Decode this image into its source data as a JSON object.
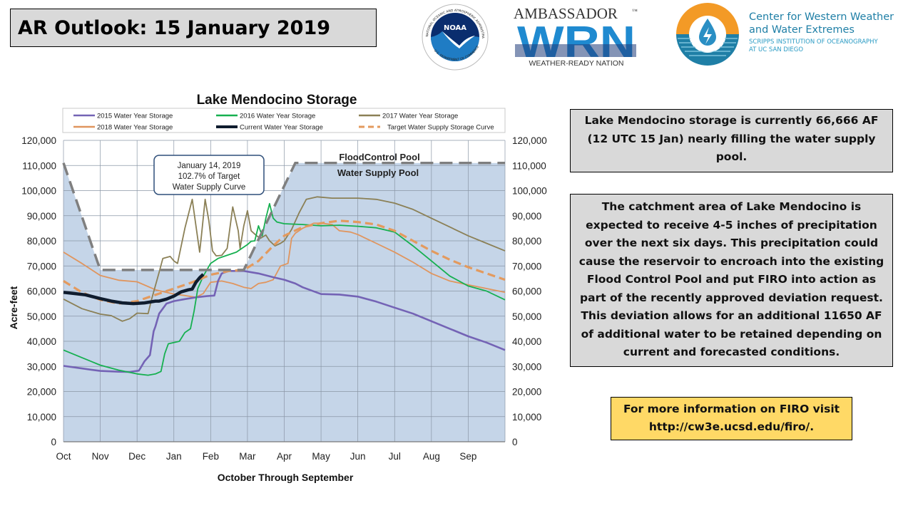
{
  "header": {
    "title": "AR Outlook: 15 January 2019"
  },
  "logos": {
    "noaa": {
      "label": "NOAA",
      "ring_text": "NATIONAL OCEANIC AND ATMOSPHERIC ADMINISTRATION",
      "ring_text_bottom": "U.S. DEPARTMENT OF COMMERCE"
    },
    "wrn": {
      "top": "AMBASSADOR",
      "tm": "™",
      "mark": "WRN",
      "bottom": "WEATHER-READY NATION"
    },
    "cw3e": {
      "line1": "Center for Western Weather",
      "line2": "and Water Extremes",
      "line3": "SCRIPPS INSTITUTION OF OCEANOGRAPHY",
      "line4": "AT UC SAN DIEGO"
    }
  },
  "info_boxes": {
    "storage": "Lake Mendocino storage is currently 66,666 AF (12 UTC 15 Jan) nearly filling the water supply pool.",
    "forecast": "The catchment area of Lake Mendocino is expected to receive 4-5 inches of precipitation over the next six days. This precipitation could cause the reservoir to encroach into the existing Flood Control Pool and put FIRO into action as part of the recently approved deviation request. This deviation allows for an additional 11650 AF of additional water to be retained depending on current and forecasted conditions.",
    "more_info_line1": "For more information on FIRO visit",
    "more_info_line2": "http://cw3e.ucsd.edu/firo/."
  },
  "colors": {
    "plot_bg": "#c5d5e8",
    "grid": "#8a96a6",
    "y2015": "#7463b5",
    "y2016": "#16b050",
    "y2017": "#8b8056",
    "y2018": "#e0955e",
    "current": "#0f1c2e",
    "target": "#e39a5e",
    "flood_rule": "#7f7f7f",
    "info_box": "#d9d9d9",
    "link_box": "#ffd966",
    "title_box": "#d9d9d9"
  },
  "chart_data": {
    "type": "line",
    "title": "Lake Mendocino Storage",
    "xlabel": "October Through September",
    "ylabel": "Acre-feet",
    "x_units": "months since Oct 1",
    "xlim": [
      0,
      12
    ],
    "ylim": [
      0,
      120000
    ],
    "grid": true,
    "legend_position": "top",
    "x_ticks": [
      "Oct",
      "Nov",
      "Dec",
      "Jan",
      "Feb",
      "Mar",
      "Apr",
      "May",
      "Jun",
      "Jul",
      "Aug",
      "Sep"
    ],
    "y_ticks": [
      "0",
      "10,000",
      "20,000",
      "30,000",
      "40,000",
      "50,000",
      "60,000",
      "70,000",
      "80,000",
      "90,000",
      "100,000",
      "110,000",
      "120,000"
    ],
    "y_tick_values": [
      0,
      10000,
      20000,
      30000,
      40000,
      50000,
      60000,
      70000,
      80000,
      90000,
      100000,
      110000,
      120000
    ],
    "annotation": {
      "line1": "January 14, 2019",
      "line2": "102.7% of Target",
      "line3": "Water Supply Curve"
    },
    "pool_labels": {
      "flood": "FloodControl Pool",
      "supply": "Water Supply Pool"
    },
    "water_supply_pool_curve": {
      "x": [
        0,
        1,
        4.9,
        6.3,
        12
      ],
      "y": [
        111000,
        68400,
        68400,
        111000,
        111000
      ]
    },
    "series": [
      {
        "key": "y2015",
        "name": "2015 Water Year Storage",
        "dash": false,
        "x": [
          0,
          0.5,
          1,
          1.5,
          1.8,
          2.05,
          2.1,
          2.2,
          2.35,
          2.45,
          2.5,
          2.6,
          2.8,
          3,
          3.3,
          3.6,
          3.9,
          4.1,
          4.2,
          4.3,
          4.5,
          4.9,
          5.3,
          5.7,
          6,
          6.3,
          6.5,
          7,
          7.5,
          8,
          8.5,
          9,
          9.5,
          10,
          10.5,
          11,
          11.5,
          12
        ],
        "y": [
          30200,
          29200,
          28200,
          27900,
          27800,
          28300,
          29500,
          32000,
          34500,
          44000,
          46000,
          51000,
          55000,
          56000,
          56800,
          57500,
          58000,
          58200,
          64000,
          67000,
          68000,
          68000,
          67000,
          65500,
          64500,
          63000,
          61500,
          58800,
          58600,
          57800,
          55800,
          53400,
          51000,
          48000,
          45000,
          42000,
          39500,
          36500
        ]
      },
      {
        "key": "y2016",
        "name": "2016 Water Year Storage",
        "dash": false,
        "x": [
          0,
          0.5,
          1,
          1.5,
          2,
          2.3,
          2.5,
          2.65,
          2.75,
          2.85,
          3,
          3.15,
          3.3,
          3.45,
          3.55,
          3.65,
          3.8,
          4,
          4.2,
          4.4,
          4.7,
          5,
          5.1,
          5.2,
          5.3,
          5.4,
          5.5,
          5.6,
          5.7,
          5.8,
          6,
          6.5,
          7,
          7.5,
          8,
          8.5,
          9,
          9.5,
          10,
          10.5,
          11,
          11.5,
          12
        ],
        "y": [
          36500,
          33500,
          30500,
          28500,
          27000,
          26500,
          27000,
          28000,
          35000,
          39000,
          39500,
          40000,
          43500,
          45000,
          52000,
          61000,
          66000,
          71000,
          73000,
          74000,
          75500,
          78500,
          79800,
          80000,
          86000,
          82000,
          89000,
          94800,
          89000,
          87500,
          86800,
          86500,
          86000,
          86200,
          85800,
          85200,
          83500,
          78000,
          72000,
          66000,
          62000,
          60000,
          56500
        ]
      },
      {
        "key": "y2017",
        "name": "2017 Water Year Storage",
        "dash": false,
        "x": [
          0,
          0.5,
          1,
          1.3,
          1.6,
          1.8,
          2,
          2.3,
          2.4,
          2.6,
          2.7,
          2.9,
          3,
          3.1,
          3.3,
          3.5,
          3.6,
          3.7,
          3.75,
          3.85,
          3.95,
          4.05,
          4.15,
          4.3,
          4.45,
          4.6,
          4.75,
          4.8,
          4.9,
          5,
          5.1,
          5.25,
          5.35,
          5.5,
          5.6,
          5.75,
          5.9,
          6,
          6.2,
          6.4,
          6.6,
          6.9,
          7.3,
          8,
          8.5,
          9,
          9.5,
          10,
          10.5,
          11,
          11.5,
          12
        ],
        "y": [
          56800,
          53000,
          50800,
          50200,
          48000,
          49000,
          51200,
          51000,
          57000,
          67500,
          73000,
          73800,
          72000,
          71000,
          85000,
          96500,
          86000,
          75500,
          82000,
          96500,
          88000,
          76000,
          74000,
          74200,
          77000,
          93500,
          84000,
          77000,
          86000,
          92000,
          84000,
          82000,
          81000,
          82300,
          80000,
          78000,
          79000,
          80000,
          84500,
          91000,
          96500,
          97500,
          97000,
          97000,
          96500,
          95000,
          92500,
          89000,
          85500,
          82000,
          79000,
          76000
        ]
      },
      {
        "key": "y2018",
        "name": "2018 Water Year Storage",
        "dash": false,
        "x": [
          0,
          0.5,
          1,
          1.5,
          2,
          2.5,
          3,
          3.3,
          3.6,
          3.8,
          4,
          4.3,
          4.6,
          4.9,
          5.1,
          5.3,
          5.5,
          5.7,
          5.9,
          6.1,
          6.2,
          6.3,
          6.5,
          6.8,
          7,
          7.3,
          7.5,
          7.8,
          8,
          8.5,
          9,
          9.5,
          10,
          10.5,
          11,
          11.5,
          12
        ],
        "y": [
          75500,
          71000,
          66200,
          64300,
          63700,
          60500,
          58800,
          58200,
          57500,
          59000,
          63500,
          64000,
          63000,
          61500,
          61000,
          63000,
          63500,
          64500,
          70000,
          71000,
          81000,
          83000,
          85000,
          87000,
          87000,
          86500,
          84000,
          83500,
          82500,
          79000,
          75500,
          71500,
          67000,
          64000,
          62500,
          61000,
          59500
        ]
      },
      {
        "key": "current",
        "name": "Current Water Year Storage",
        "dash": false,
        "x": [
          0,
          0.3,
          0.6,
          1,
          1.3,
          1.6,
          1.9,
          2.2,
          2.5,
          2.6,
          2.8,
          3,
          3.2,
          3.4,
          3.5,
          3.6,
          3.7,
          3.8
        ],
        "y": [
          59500,
          59000,
          58500,
          57000,
          56000,
          55300,
          55000,
          55300,
          56000,
          56000,
          56800,
          58000,
          59700,
          60500,
          60800,
          63500,
          65300,
          66666
        ]
      },
      {
        "key": "target",
        "name": "Target Water Supply Storage Curve",
        "dash": true,
        "x": [
          0,
          0.5,
          1,
          1.5,
          2,
          2.5,
          3,
          3.5,
          4,
          4.5,
          4.9,
          5.3,
          5.7,
          6,
          6.5,
          7,
          7.5,
          8,
          8.5,
          9,
          9.5,
          10,
          10.5,
          11,
          11.5,
          12
        ],
        "y": [
          64000,
          59500,
          56500,
          55000,
          56000,
          58500,
          61000,
          63500,
          66500,
          68000,
          68400,
          72000,
          78000,
          82000,
          85500,
          87000,
          88000,
          87500,
          86500,
          84000,
          80000,
          76000,
          72500,
          69500,
          67000,
          64500
        ]
      }
    ]
  }
}
